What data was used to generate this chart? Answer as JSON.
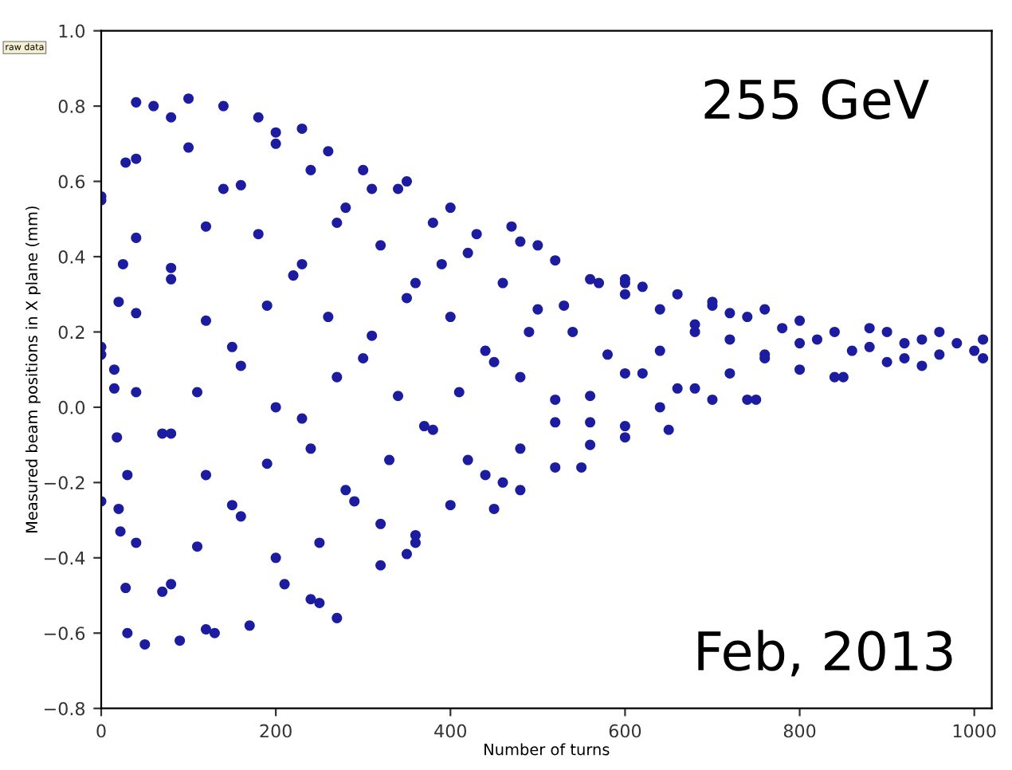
{
  "chart_data": {
    "type": "scatter",
    "xlabel": "Number of turns",
    "ylabel": "Measured beam positions in X plane (mm)",
    "annotations": [
      "raw data",
      "255 GeV",
      "Feb, 2013"
    ],
    "xlim": [
      0,
      1020
    ],
    "xticks": [
      0,
      200,
      400,
      600,
      800,
      1000
    ],
    "ylim": [
      -0.8,
      1.0
    ],
    "yticks": [
      {
        "value": -0.8,
        "label": "−0.8"
      },
      {
        "value": -0.6,
        "label": "−0.6"
      },
      {
        "value": -0.4,
        "label": "−0.4"
      },
      {
        "value": -0.2,
        "label": "−0.2"
      },
      "0.0",
      0.2,
      0.4,
      0.6,
      0.8,
      "1.0"
    ],
    "marker": "circle",
    "grid": false,
    "series": [
      {
        "color": "#1c1ca0",
        "x": [
          0,
          40,
          80,
          120,
          0,
          40,
          80,
          120,
          160,
          200,
          240,
          270,
          0,
          40,
          80,
          120,
          160,
          200,
          240,
          280,
          320,
          360,
          60,
          100,
          140,
          180,
          220,
          260,
          300,
          340,
          380,
          420,
          460,
          200,
          240,
          280,
          320,
          360,
          400,
          440,
          480,
          520,
          560,
          600,
          340,
          380,
          420,
          460,
          500,
          540,
          580,
          620,
          660,
          700,
          740,
          480,
          520,
          560,
          600,
          640,
          680,
          720,
          760,
          800,
          840,
          620,
          660,
          700,
          740,
          780,
          820,
          860,
          900,
          940,
          0,
          40,
          80,
          0,
          40,
          80,
          120,
          160,
          200,
          230,
          30,
          70,
          110,
          150,
          190,
          230,
          270,
          310,
          350,
          30,
          70,
          110,
          150,
          190,
          230,
          270,
          310,
          350,
          390,
          430,
          470,
          170,
          210,
          250,
          290,
          330,
          370,
          410,
          450,
          490,
          530,
          570,
          600,
          320,
          360,
          400,
          440,
          480,
          520,
          560,
          600,
          640,
          680,
          720,
          760,
          480,
          520,
          560,
          600,
          640,
          680,
          720,
          760,
          800,
          840,
          880,
          50,
          90,
          130,
          250,
          350,
          450,
          550,
          650,
          750,
          850,
          40,
          100,
          140,
          180,
          260,
          300,
          400,
          500,
          600,
          700,
          800,
          880,
          900,
          920,
          940,
          960,
          980,
          1000,
          1010,
          1010,
          960,
          920,
          15,
          15,
          18,
          20,
          20,
          22,
          28,
          28,
          25
        ],
        "values": [
          -0.25,
          -0.36,
          -0.47,
          -0.59,
          0.16,
          0.04,
          -0.07,
          -0.18,
          -0.29,
          -0.4,
          -0.51,
          -0.56,
          0.56,
          0.45,
          0.34,
          0.23,
          0.11,
          0.0,
          -0.11,
          -0.22,
          -0.31,
          -0.36,
          0.8,
          0.69,
          0.58,
          0.46,
          0.35,
          0.24,
          0.13,
          0.03,
          -0.06,
          -0.14,
          -0.2,
          0.73,
          0.63,
          0.53,
          0.43,
          0.33,
          0.24,
          0.15,
          0.08,
          0.02,
          -0.04,
          -0.08,
          0.58,
          0.49,
          0.41,
          0.33,
          0.26,
          0.2,
          0.14,
          0.09,
          0.05,
          0.02,
          0.02,
          0.44,
          0.39,
          0.34,
          0.3,
          0.26,
          0.22,
          0.18,
          0.14,
          0.1,
          0.08,
          0.32,
          0.3,
          0.27,
          0.24,
          0.21,
          0.18,
          0.15,
          0.12,
          0.11,
          0.55,
          0.66,
          0.77,
          0.14,
          0.25,
          0.37,
          0.48,
          0.59,
          0.7,
          0.74,
          -0.18,
          -0.07,
          0.04,
          0.16,
          0.27,
          0.38,
          0.49,
          0.58,
          0.6,
          -0.6,
          -0.49,
          -0.37,
          -0.26,
          -0.15,
          -0.03,
          0.08,
          0.19,
          0.29,
          0.38,
          0.46,
          0.48,
          -0.58,
          -0.47,
          -0.36,
          -0.25,
          -0.14,
          -0.05,
          0.04,
          0.12,
          0.2,
          0.27,
          0.33,
          0.33,
          -0.42,
          -0.34,
          -0.26,
          -0.18,
          -0.11,
          -0.04,
          0.03,
          0.09,
          0.15,
          0.2,
          0.25,
          0.26,
          -0.22,
          -0.16,
          -0.1,
          -0.05,
          0.0,
          0.05,
          0.09,
          0.13,
          0.17,
          0.2,
          0.21,
          -0.63,
          -0.62,
          -0.6,
          -0.52,
          -0.39,
          -0.27,
          -0.16,
          -0.06,
          0.02,
          0.08,
          0.81,
          0.82,
          0.8,
          0.77,
          0.68,
          0.63,
          0.53,
          0.43,
          0.34,
          0.28,
          0.23,
          0.16,
          0.2,
          0.13,
          0.18,
          0.14,
          0.17,
          0.15,
          0.13,
          0.18,
          0.2,
          0.17,
          0.1,
          0.05,
          -0.08,
          0.28,
          -0.27,
          -0.33,
          0.65,
          -0.48,
          0.38
        ]
      }
    ]
  }
}
